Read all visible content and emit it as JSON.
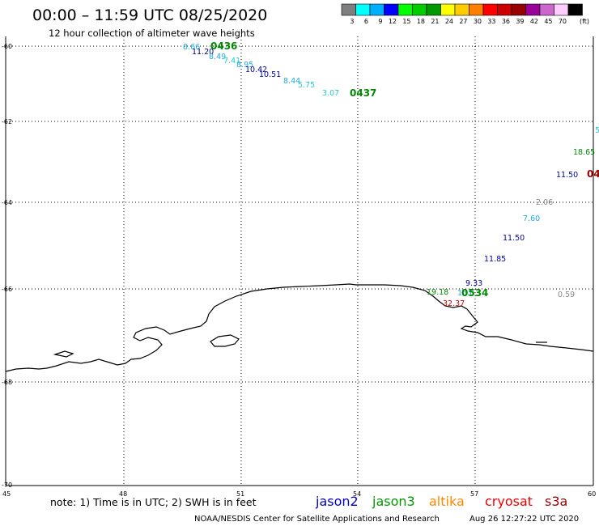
{
  "header": {
    "title": "00:00 – 11:59 UTC 08/25/2020",
    "subtitle": "12 hour collection of altimeter wave heights"
  },
  "legend": {
    "bins": [
      {
        "label": "3",
        "color": "#7f7f7f"
      },
      {
        "label": "6",
        "color": "#00ffff"
      },
      {
        "label": "9",
        "color": "#00b0ff"
      },
      {
        "label": "12",
        "color": "#0000ff"
      },
      {
        "label": "15",
        "color": "#00ff00"
      },
      {
        "label": "18",
        "color": "#00cc00"
      },
      {
        "label": "21",
        "color": "#009900"
      },
      {
        "label": "24",
        "color": "#ffff00"
      },
      {
        "label": "27",
        "color": "#ffcc00"
      },
      {
        "label": "30",
        "color": "#ff8000"
      },
      {
        "label": "33",
        "color": "#ff0000"
      },
      {
        "label": "36",
        "color": "#cc0000"
      },
      {
        "label": "39",
        "color": "#990000"
      },
      {
        "label": "42",
        "color": "#990099"
      },
      {
        "label": "45",
        "color": "#cc66cc"
      },
      {
        "label": "70",
        "color": "#ffccff"
      },
      {
        "label": "",
        "color": "#000000"
      }
    ],
    "unit_label": "(ft)"
  },
  "map": {
    "lon_ticks": [
      "45",
      "48",
      "51",
      "54",
      "57",
      "60"
    ],
    "lat_ticks": [
      "-60",
      "-62",
      "-64",
      "-66",
      "-68",
      "-70"
    ],
    "obs": [
      {
        "text": "8.66",
        "color": "#22aadd"
      },
      {
        "text": "0436",
        "color": "#008800",
        "bold": true
      },
      {
        "text": "11.20",
        "color": "#000088"
      },
      {
        "text": "8.49",
        "color": "#22aadd"
      },
      {
        "text": "7.41",
        "color": "#22cccc"
      },
      {
        "text": "8.95",
        "color": "#22aadd"
      },
      {
        "text": "10.42",
        "color": "#000099"
      },
      {
        "text": "10.51",
        "color": "#000099"
      },
      {
        "text": "8.44",
        "color": "#22aadd"
      },
      {
        "text": "5.75",
        "color": "#22cccc"
      },
      {
        "text": "3.07",
        "color": "#22cccc"
      },
      {
        "text": "0437",
        "color": "#008800",
        "bold": true
      },
      {
        "text": "5",
        "color": "#22cccc"
      },
      {
        "text": "18.65",
        "color": "#008800"
      },
      {
        "text": "11.50",
        "color": "#000099"
      },
      {
        "text": "04",
        "color": "#990000",
        "bold": true
      },
      {
        "text": "2.06",
        "color": "#888888"
      },
      {
        "text": "7.60",
        "color": "#22aadd"
      },
      {
        "text": "11.50",
        "color": "#000099"
      },
      {
        "text": "11.85",
        "color": "#000099"
      },
      {
        "text": "9.33",
        "color": "#000099"
      },
      {
        "text": "19.18",
        "color": "#008800"
      },
      {
        "text": "16.6",
        "color": "#22aadd"
      },
      {
        "text": "0534",
        "color": "#008800",
        "bold": true
      },
      {
        "text": "32.37",
        "color": "#cc0000"
      },
      {
        "text": "0.59",
        "color": "#888888"
      }
    ]
  },
  "footer": {
    "note": "note:  1) Time is in UTC;  2) SWH is in feet",
    "satellites": [
      {
        "name": "jason2",
        "color": "#0000cc"
      },
      {
        "name": "jason3",
        "color": "#009900"
      },
      {
        "name": "altika",
        "color": "#ff8800"
      },
      {
        "name": "cryosat",
        "color": "#ee0000"
      },
      {
        "name": "s3a",
        "color": "#990000"
      }
    ],
    "credit": "NOAA/NESDIS Center for Satellite Applications and Research",
    "timestamp": "Aug 26 12:27:22 UTC 2020"
  }
}
